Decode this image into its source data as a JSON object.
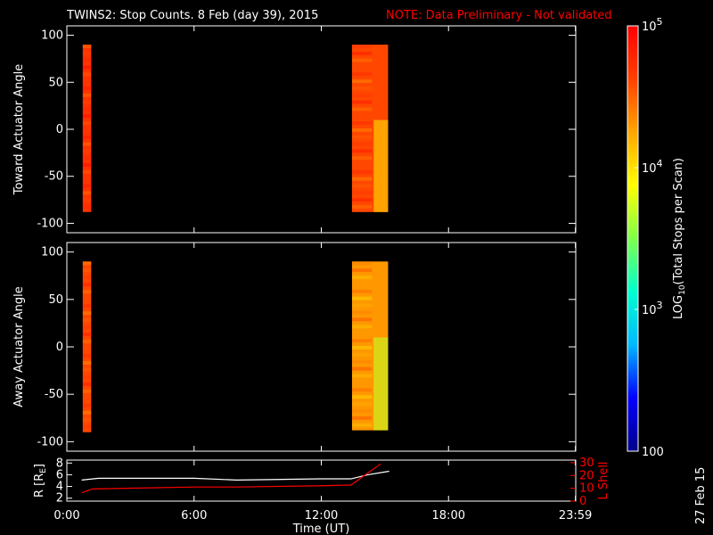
{
  "header": {
    "title": "TWINS2: Stop Counts.  8 Feb (day  39), 2015",
    "note": "NOTE: Data Preliminary - Not validated",
    "note_color": "#ff0000"
  },
  "stamp": "27 Feb 15",
  "chart_data": [
    {
      "type": "heatmap",
      "ylabel": "Toward Actuator Angle",
      "ylim": [
        -110,
        110
      ],
      "yticks": [
        "100",
        "50",
        "0",
        "-50",
        "-100"
      ],
      "xlim": [
        0,
        24
      ],
      "xticks": [
        "0:00",
        "6:00",
        "12:00",
        "18:00",
        "23:59"
      ],
      "blocks": [
        {
          "t_start": 0.75,
          "t_end": 1.15,
          "angle_range": [
            -88,
            90
          ],
          "log10_counts": 4.7
        },
        {
          "t_start": 13.45,
          "t_end": 15.15,
          "angle_range": [
            -88,
            90
          ],
          "log10_counts": 4.6
        }
      ]
    },
    {
      "type": "heatmap",
      "ylabel": "Away Actuator Angle",
      "ylim": [
        -110,
        110
      ],
      "yticks": [
        "100",
        "50",
        "0",
        "-50",
        "-100"
      ],
      "xlim": [
        0,
        24
      ],
      "xticks": [
        "0:00",
        "6:00",
        "12:00",
        "18:00",
        "23:59"
      ],
      "blocks": [
        {
          "t_start": 0.75,
          "t_end": 1.15,
          "angle_range": [
            -90,
            90
          ],
          "log10_counts": 4.6
        },
        {
          "t_start": 13.45,
          "t_end": 15.15,
          "angle_range": [
            -88,
            90
          ],
          "log10_counts": 4.3
        }
      ]
    },
    {
      "type": "line",
      "xlabel": "Time (UT)",
      "ylabel": "R [R",
      "ylabel_sub": "E",
      "ylabel_close": "]",
      "ylabel_right": "L Shell",
      "ylim": [
        1.5,
        8.5
      ],
      "yticks": [
        "8",
        "6",
        "4",
        "2"
      ],
      "y2lim": [
        0,
        32
      ],
      "y2ticks": [
        "30",
        "20",
        "10",
        "0"
      ],
      "xlim": [
        0,
        24
      ],
      "xticks": [
        "0:00",
        "6:00",
        "12:00",
        "18:00",
        "23:59"
      ],
      "series": [
        {
          "color": "#ffffff",
          "x": [
            0.7,
            1.5,
            6,
            8,
            12,
            13.4,
            14.2,
            15.2
          ],
          "y": [
            5.1,
            5.4,
            5.4,
            5.1,
            5.3,
            5.3,
            6.0,
            6.6
          ]
        },
        {
          "color": "#ff0000",
          "x": [
            0.7,
            1.2,
            6,
            8,
            12,
            13.4,
            14.2,
            14.8
          ],
          "y2": [
            6.5,
            9.5,
            11,
            11,
            12,
            12.5,
            22,
            29
          ]
        }
      ]
    },
    {
      "type": "colorbar",
      "label_pre": "LOG",
      "label_sub": "10",
      "label_post": "(Total Stops per Scan)",
      "tick_labels": [
        {
          "base": "10",
          "exp": "5",
          "value": 5
        },
        {
          "base": "10",
          "exp": "4",
          "value": 4
        },
        {
          "base": "10",
          "exp": "3",
          "value": 3
        },
        {
          "base": "100",
          "exp": "",
          "value": 2
        }
      ],
      "range": [
        2,
        5
      ],
      "colors": [
        "#00008a",
        "#0000ff",
        "#00b8ff",
        "#00ffd0",
        "#7fff4a",
        "#ffff00",
        "#ffa500",
        "#ff4000",
        "#ff0000"
      ]
    }
  ]
}
